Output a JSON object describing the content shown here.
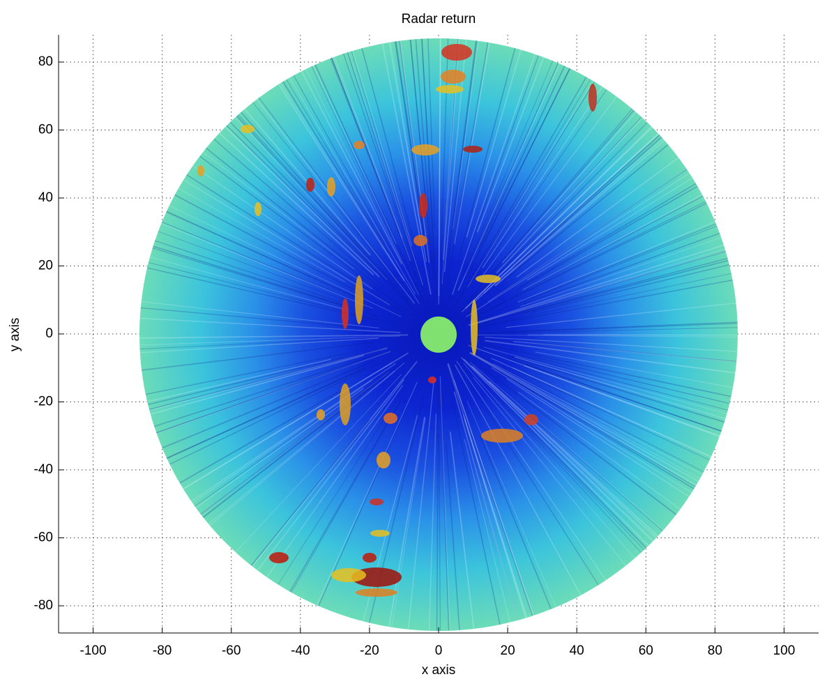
{
  "chart_data": {
    "type": "image",
    "title": "Radar return",
    "x_label": "x axis",
    "y_label": "y axis",
    "xlim": [
      -110,
      110
    ],
    "ylim": [
      -88,
      88
    ],
    "xticks": [
      -100,
      -80,
      -60,
      -40,
      -20,
      0,
      20,
      40,
      60,
      80,
      100
    ],
    "yticks": [
      -80,
      -60,
      -40,
      -20,
      0,
      20,
      40,
      60,
      80
    ],
    "grid": true
  }
}
